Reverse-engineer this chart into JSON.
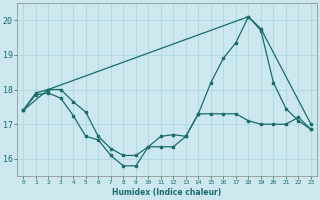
{
  "xlabel": "Humidex (Indice chaleur)",
  "ylabel": "",
  "bg_color": "#cce8ee",
  "grid_color": "#a8d4dc",
  "line_color": "#1a6b6b",
  "xlim": [
    -0.5,
    23.5
  ],
  "ylim": [
    15.5,
    20.5
  ],
  "yticks": [
    16,
    17,
    18,
    19,
    20
  ],
  "xticks": [
    0,
    1,
    2,
    3,
    4,
    5,
    6,
    7,
    8,
    9,
    10,
    11,
    12,
    13,
    14,
    15,
    16,
    17,
    18,
    19,
    20,
    21,
    22,
    23
  ],
  "line1_x": [
    0,
    1,
    2,
    3,
    4,
    5,
    6,
    7,
    8,
    9,
    10,
    11,
    12,
    13,
    14,
    15,
    16,
    17,
    18,
    19,
    20,
    21,
    22,
    23
  ],
  "line1_y": [
    17.4,
    17.85,
    17.9,
    17.75,
    17.25,
    16.65,
    16.55,
    16.1,
    15.8,
    15.8,
    16.35,
    16.35,
    16.35,
    16.65,
    17.3,
    17.3,
    17.3,
    17.3,
    17.1,
    17.0,
    17.0,
    17.0,
    17.2,
    16.85
  ],
  "line2_x": [
    0,
    1,
    2,
    3,
    4,
    5,
    6,
    7,
    8,
    9,
    10,
    11,
    12,
    13,
    14,
    15,
    16,
    17,
    18,
    19,
    20,
    21,
    22,
    23
  ],
  "line2_y": [
    17.4,
    17.9,
    18.0,
    18.0,
    17.65,
    17.35,
    16.65,
    16.3,
    16.1,
    16.1,
    16.35,
    16.65,
    16.7,
    16.65,
    17.3,
    18.2,
    18.9,
    19.35,
    20.1,
    19.7,
    18.2,
    17.45,
    17.1,
    16.85
  ],
  "line3_x": [
    0,
    2,
    18,
    19,
    23
  ],
  "line3_y": [
    17.4,
    18.0,
    20.1,
    19.75,
    17.0
  ]
}
